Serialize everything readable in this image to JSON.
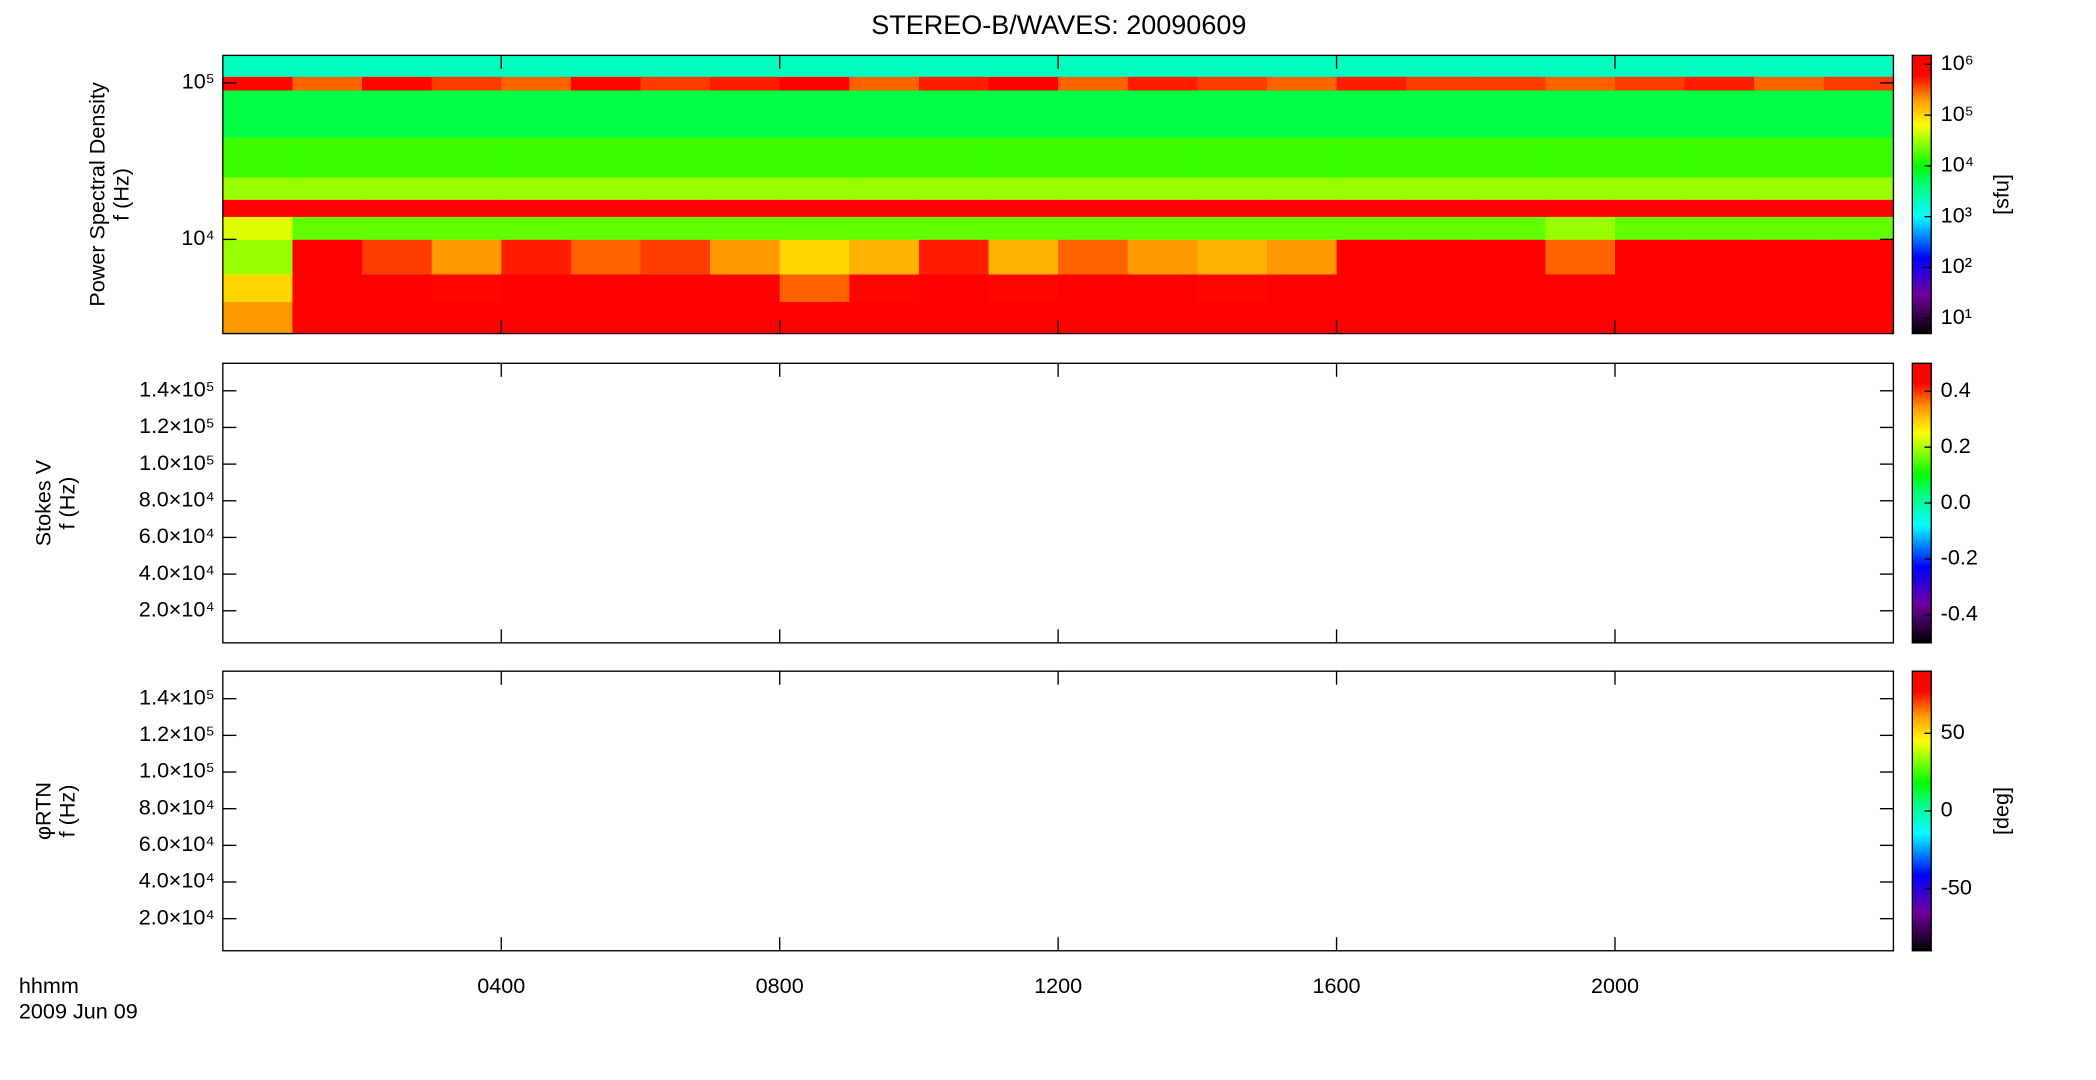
{
  "chart_data": [
    {
      "type": "heatmap",
      "title": "STEREO-B/WAVES: 20090609",
      "ylabel": [
        "Power Spectral Density",
        "f (Hz)"
      ],
      "ylog": true,
      "ylim": [
        2500,
        150000
      ],
      "yticks": [
        {
          "value": 10000,
          "label": "10⁴"
        },
        {
          "value": 100000,
          "label": "10⁵"
        }
      ],
      "xlim": [
        0,
        24
      ],
      "x_edges": [
        0,
        1,
        2,
        3,
        4,
        5,
        6,
        7,
        8,
        9,
        10,
        11,
        12,
        13,
        14,
        15,
        16,
        17,
        18,
        19,
        20,
        21,
        22,
        23,
        24
      ],
      "y_edges": [
        2500,
        4000,
        6000,
        10000,
        14000,
        18000,
        25000,
        45000,
        90000,
        110000,
        150000
      ],
      "z": [
        [
          200000,
          1000000,
          1000000,
          1000000,
          1000000,
          1000000,
          1000000,
          1000000,
          1000000,
          1000000,
          1000000,
          1000000,
          1000000,
          1000000,
          1000000,
          1000000,
          1000000,
          1000000,
          1000000,
          1000000,
          1000000,
          1000000,
          1000000,
          1000000
        ],
        [
          100000,
          1000000,
          1000000,
          600000,
          1000000,
          1000000,
          1000000,
          800000,
          300000,
          600000,
          1000000,
          600000,
          1000000,
          1000000,
          600000,
          1000000,
          1000000,
          1000000,
          1000000,
          700000,
          1000000,
          1000000,
          1000000,
          1000000
        ],
        [
          30000,
          800000,
          400000,
          200000,
          500000,
          300000,
          400000,
          200000,
          100000,
          150000,
          500000,
          150000,
          300000,
          200000,
          150000,
          200000,
          1000000,
          1000000,
          1000000,
          300000,
          1000000,
          1000000,
          1000000,
          1000000
        ],
        [
          50000,
          20000,
          20000,
          20000,
          20000,
          20000,
          20000,
          20000,
          20000,
          20000,
          20000,
          20000,
          20000,
          20000,
          20000,
          20000,
          20000,
          20000,
          20000,
          30000,
          20000,
          20000,
          20000,
          20000
        ],
        [
          900000,
          900000,
          900000,
          900000,
          900000,
          900000,
          900000,
          900000,
          900000,
          900000,
          900000,
          900000,
          900000,
          900000,
          900000,
          900000,
          900000,
          900000,
          900000,
          900000,
          900000,
          900000,
          900000,
          900000
        ],
        [
          30000,
          30000,
          30000,
          30000,
          30000,
          30000,
          30000,
          30000,
          30000,
          30000,
          30000,
          30000,
          30000,
          30000,
          30000,
          30000,
          30000,
          30000,
          30000,
          30000,
          30000,
          30000,
          30000,
          30000
        ],
        [
          15000,
          15000,
          15000,
          15000,
          15000,
          15000,
          15000,
          15000,
          15000,
          15000,
          15000,
          15000,
          15000,
          15000,
          15000,
          15000,
          15000,
          15000,
          15000,
          15000,
          15000,
          15000,
          15000,
          15000
        ],
        [
          6000,
          6000,
          6000,
          6000,
          6000,
          6000,
          6000,
          6000,
          6000,
          6000,
          6000,
          6000,
          6000,
          6000,
          6000,
          6000,
          6000,
          6000,
          6000,
          6000,
          6000,
          6000,
          6000,
          6000
        ],
        [
          600000,
          300000,
          600000,
          400000,
          300000,
          600000,
          400000,
          500000,
          700000,
          300000,
          500000,
          700000,
          300000,
          500000,
          400000,
          300000,
          500000,
          400000,
          400000,
          300000,
          400000,
          500000,
          300000,
          400000
        ],
        [
          2000,
          2000,
          2000,
          2000,
          2000,
          2000,
          2000,
          2000,
          2000,
          2000,
          2000,
          2000,
          2000,
          2000,
          2000,
          2000,
          2000,
          2000,
          2000,
          2000,
          2000,
          2000,
          2000,
          2000
        ]
      ],
      "zlog": true,
      "zlim": [
        5,
        1500000
      ],
      "zticks": [
        {
          "value": 10,
          "label": "10¹"
        },
        {
          "value": 100,
          "label": "10²"
        },
        {
          "value": 1000,
          "label": "10³"
        },
        {
          "value": 10000,
          "label": "10⁴"
        },
        {
          "value": 100000,
          "label": "10⁵"
        },
        {
          "value": 1000000,
          "label": "10⁶"
        }
      ],
      "zlabel": "[sfu]"
    },
    {
      "type": "heatmap",
      "ylabel": [
        "Stokes V",
        "f (Hz)"
      ],
      "ylim": [
        2500,
        155000
      ],
      "yticks": [
        {
          "value": 20000,
          "label": "2.0×10⁴"
        },
        {
          "value": 40000,
          "label": "4.0×10⁴"
        },
        {
          "value": 60000,
          "label": "6.0×10⁴"
        },
        {
          "value": 80000,
          "label": "8.0×10⁴"
        },
        {
          "value": 100000,
          "label": "1.0×10⁵"
        },
        {
          "value": 120000,
          "label": "1.2×10⁵"
        },
        {
          "value": 140000,
          "label": "1.4×10⁵"
        }
      ],
      "xlim": [
        0,
        24
      ],
      "zlim": [
        -0.5,
        0.5
      ],
      "zticks": [
        -0.4,
        -0.2,
        {
          "value": 0,
          "label": "0.0"
        },
        0.2,
        0.4
      ]
    },
    {
      "type": "heatmap",
      "ylabel": [
        "φRTN",
        "f (Hz)"
      ],
      "ylim": [
        2500,
        155000
      ],
      "yticks": [
        {
          "value": 20000,
          "label": "2.0×10⁴"
        },
        {
          "value": 40000,
          "label": "4.0×10⁴"
        },
        {
          "value": 60000,
          "label": "6.0×10⁴"
        },
        {
          "value": 80000,
          "label": "8.0×10⁴"
        },
        {
          "value": 100000,
          "label": "1.0×10⁵"
        },
        {
          "value": 120000,
          "label": "1.2×10⁵"
        },
        {
          "value": 140000,
          "label": "1.4×10⁵"
        }
      ],
      "xlim": [
        0,
        24
      ],
      "xticks": [
        {
          "value": 4,
          "label": "0400"
        },
        {
          "value": 8,
          "label": "0800"
        },
        {
          "value": 12,
          "label": "1200"
        },
        {
          "value": 16,
          "label": "1600"
        },
        {
          "value": 20,
          "label": "2000"
        }
      ],
      "xlabel": "hhmm",
      "date": "2009 Jun 09",
      "zlim": [
        -90,
        90
      ],
      "zticks": [
        -50,
        0,
        50
      ],
      "zlabel": "[deg]"
    }
  ]
}
